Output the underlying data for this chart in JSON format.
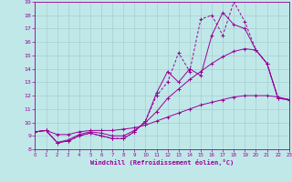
{
  "xlabel": "Windchill (Refroidissement éolien,°C)",
  "xlim": [
    0,
    23
  ],
  "ylim": [
    8,
    19
  ],
  "xticks": [
    0,
    1,
    2,
    3,
    4,
    5,
    6,
    7,
    8,
    9,
    10,
    11,
    12,
    13,
    14,
    15,
    16,
    17,
    18,
    19,
    20,
    21,
    22,
    23
  ],
  "yticks": [
    8,
    9,
    10,
    11,
    12,
    13,
    14,
    15,
    16,
    17,
    18,
    19
  ],
  "bg_color": "#c0e8e8",
  "line_color": "#990099",
  "grid_color": "#a0c8cc",
  "line1_x": [
    0,
    1,
    2,
    3,
    4,
    5,
    6,
    7,
    8,
    9,
    10,
    11,
    12,
    13,
    14,
    15,
    16,
    17,
    18,
    19,
    20,
    21,
    22,
    23
  ],
  "line1_y": [
    9.3,
    9.4,
    8.5,
    8.6,
    9.0,
    9.2,
    9.0,
    8.8,
    8.8,
    9.3,
    10.1,
    12.2,
    13.8,
    13.0,
    14.0,
    13.5,
    16.5,
    18.2,
    17.3,
    17.0,
    15.4,
    14.4,
    11.8,
    11.7
  ],
  "line2_x": [
    0,
    1,
    2,
    3,
    4,
    5,
    6,
    7,
    8,
    9,
    10,
    11,
    12,
    13,
    14,
    15,
    16,
    17,
    18,
    19,
    20,
    21,
    22,
    23
  ],
  "line2_y": [
    9.3,
    9.4,
    8.5,
    8.6,
    9.0,
    9.2,
    9.0,
    8.8,
    8.8,
    9.3,
    10.1,
    12.0,
    13.0,
    15.2,
    13.8,
    17.7,
    18.0,
    16.5,
    19.0,
    17.5,
    15.4,
    14.4,
    11.8,
    11.7
  ],
  "line3_x": [
    0,
    1,
    2,
    3,
    4,
    5,
    6,
    7,
    8,
    9,
    10,
    11,
    12,
    13,
    14,
    15,
    16,
    17,
    18,
    19,
    20,
    21,
    22,
    23
  ],
  "line3_y": [
    9.3,
    9.4,
    8.5,
    8.7,
    9.1,
    9.3,
    9.2,
    9.0,
    9.0,
    9.4,
    10.0,
    10.8,
    11.8,
    12.5,
    13.2,
    13.8,
    14.4,
    14.9,
    15.3,
    15.5,
    15.4,
    14.4,
    11.8,
    11.7
  ],
  "line4_x": [
    0,
    1,
    2,
    3,
    4,
    5,
    6,
    7,
    8,
    9,
    10,
    11,
    12,
    13,
    14,
    15,
    16,
    17,
    18,
    19,
    20,
    21,
    22,
    23
  ],
  "line4_y": [
    9.3,
    9.4,
    9.1,
    9.1,
    9.3,
    9.4,
    9.4,
    9.4,
    9.5,
    9.6,
    9.8,
    10.1,
    10.4,
    10.7,
    11.0,
    11.3,
    11.5,
    11.7,
    11.9,
    12.0,
    12.0,
    12.0,
    11.9,
    11.7
  ]
}
